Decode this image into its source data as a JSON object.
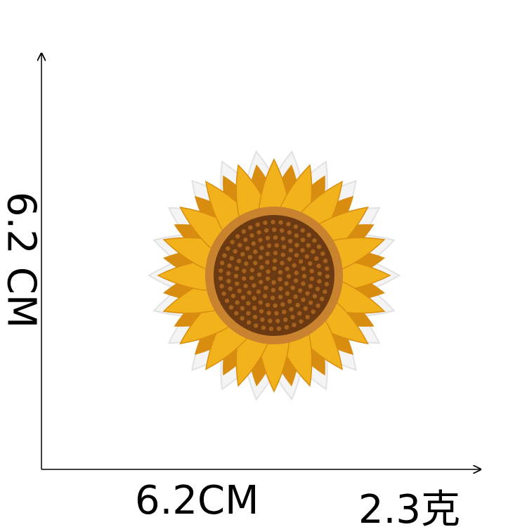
{
  "dimensions": {
    "height_label": "6.2 CM",
    "width_label": "6.2CM",
    "weight_label": "2.3克"
  },
  "product": {
    "subject": "sunflower embroidered patch"
  },
  "colors": {
    "petal": "#f1b21c",
    "petal_dark": "#d98d10",
    "center": "#6b3a12",
    "center_ring": "#c9822e",
    "backing": "#f4f4f4"
  }
}
